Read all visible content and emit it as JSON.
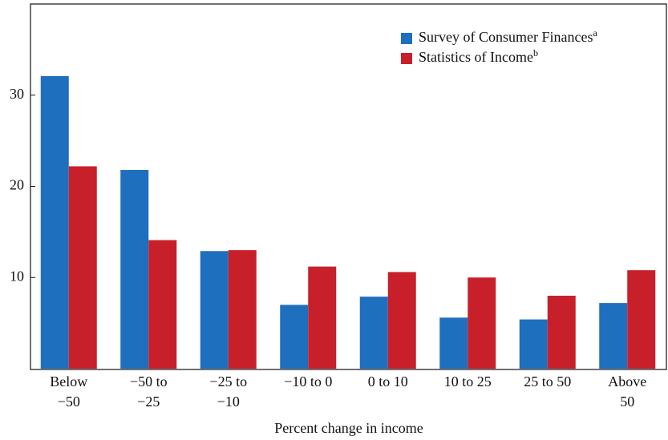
{
  "chart_data": {
    "type": "bar",
    "x_label": "Percent change in income",
    "categories": [
      "Below\n−50",
      "−50 to\n−25",
      "−25 to\n−10",
      "−10 to 0",
      "0 to 10",
      "10 to 25",
      "25 to 50",
      "Above\n50"
    ],
    "series": [
      {
        "name": "Survey of Consumer Finances",
        "note": "a",
        "color": "#1f6fbf",
        "values": [
          32.1,
          21.8,
          12.9,
          7.0,
          7.9,
          5.6,
          5.4,
          7.2
        ]
      },
      {
        "name": "Statistics of Income",
        "note": "b",
        "color": "#c8202a",
        "values": [
          22.2,
          14.1,
          13.0,
          11.2,
          10.6,
          10.0,
          8.0,
          10.8
        ]
      }
    ],
    "ylim": [
      0,
      40
    ],
    "yticks": [
      10,
      20,
      30
    ],
    "legend": "upper right"
  }
}
